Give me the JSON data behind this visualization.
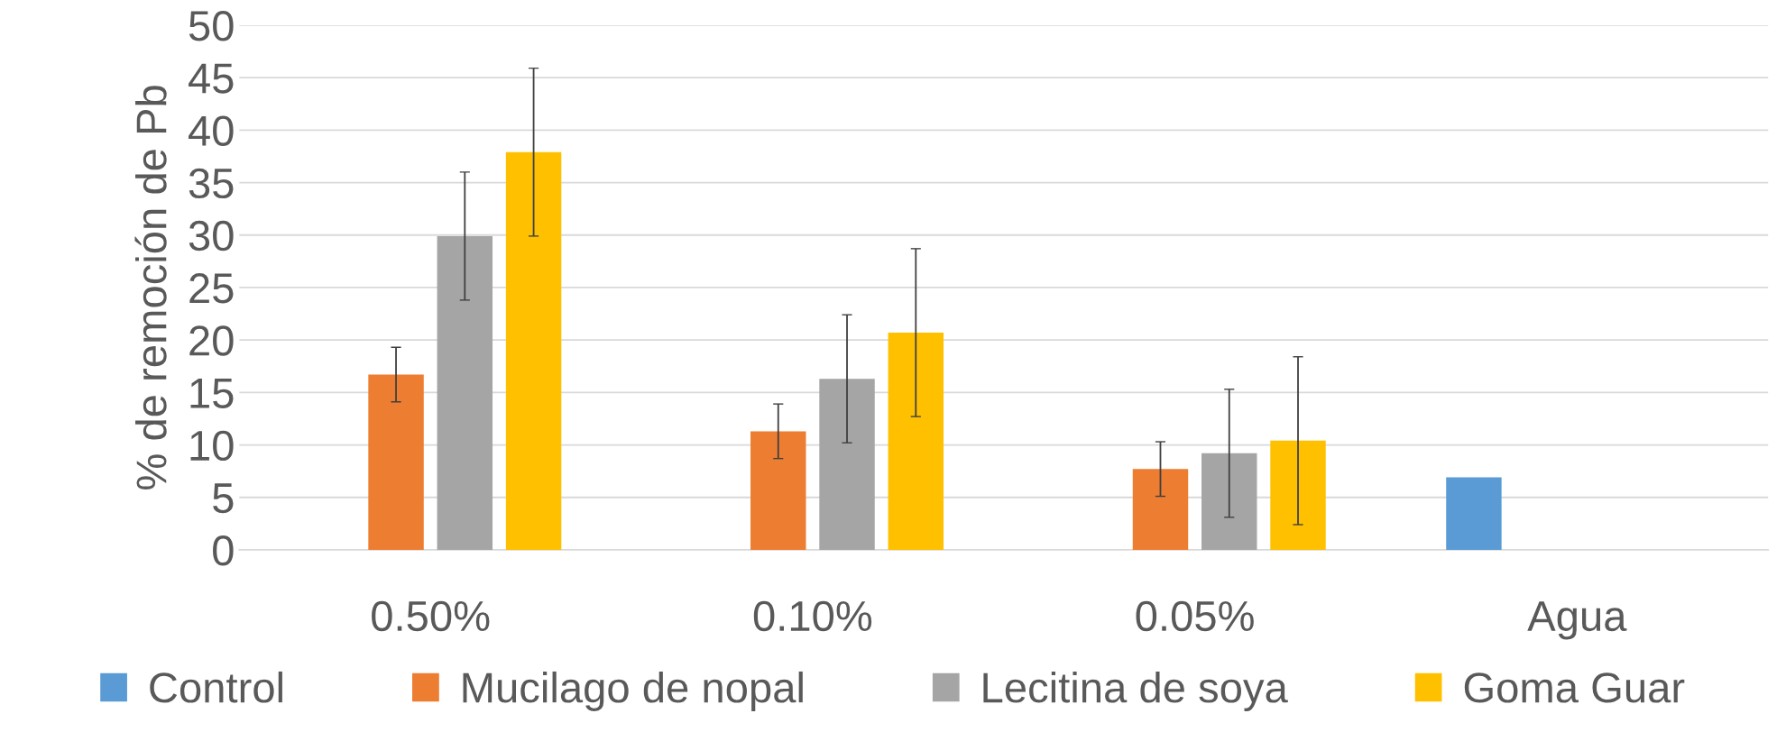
{
  "chart_data": {
    "type": "bar",
    "ylabel": "% de remoción de Pb",
    "categories": [
      "0.50%",
      "0.10%",
      "0.05%",
      "Agua"
    ],
    "series": [
      {
        "name": "Control",
        "color": "#5b9bd5",
        "values": [
          null,
          null,
          null,
          6.9
        ],
        "errors": [
          null,
          null,
          null,
          null
        ]
      },
      {
        "name": "Mucilago de nopal",
        "color": "#ed7d31",
        "values": [
          16.7,
          11.3,
          7.7,
          null
        ],
        "errors": [
          2.6,
          2.6,
          2.6,
          null
        ]
      },
      {
        "name": "Lecitina de soya",
        "color": "#a5a5a5",
        "values": [
          29.9,
          16.3,
          9.2,
          null
        ],
        "errors": [
          6.1,
          6.1,
          6.1,
          null
        ]
      },
      {
        "name": "Goma Guar",
        "color": "#ffc000",
        "values": [
          37.9,
          20.7,
          10.4,
          null
        ],
        "errors": [
          8,
          8,
          8,
          null
        ]
      }
    ],
    "ylim": [
      0,
      50
    ],
    "yticks": [
      0,
      5,
      10,
      15,
      20,
      25,
      30,
      35,
      40,
      45,
      50
    ],
    "grid": "y",
    "legend": "bottom"
  }
}
